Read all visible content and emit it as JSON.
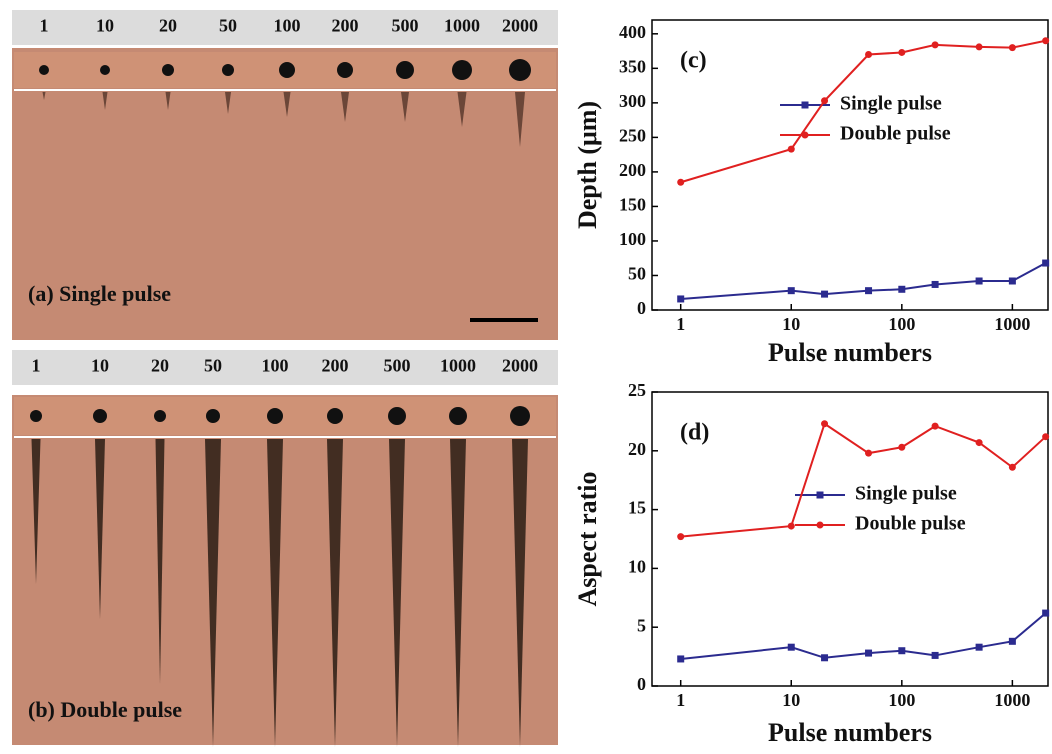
{
  "images": [
    {
      "label": "(a) Single pulse",
      "pulse_numbers": [
        "1",
        "10",
        "20",
        "50",
        "100",
        "200",
        "500",
        "1000",
        "2000"
      ]
    },
    {
      "label": "(b) Double pulse",
      "pulse_numbers": [
        "1",
        "10",
        "20",
        "50",
        "100",
        "200",
        "500",
        "1000",
        "2000"
      ]
    }
  ],
  "chart_data": [
    {
      "type": "line",
      "panel": "(c)",
      "xlabel": "Pulse numbers",
      "ylabel": "Depth (μm)",
      "xscale": "log",
      "x": [
        1,
        10,
        20,
        50,
        100,
        200,
        500,
        1000,
        2000
      ],
      "series": [
        {
          "name": "Single pulse",
          "color": "#2b2b8f",
          "marker": "square",
          "values": [
            16,
            28,
            23,
            28,
            30,
            37,
            42,
            42,
            68
          ]
        },
        {
          "name": "Double pulse",
          "color": "#e02020",
          "marker": "circle",
          "values": [
            185,
            233,
            303,
            370,
            373,
            384,
            381,
            380,
            390
          ]
        }
      ],
      "xlim": [
        0.55,
        2100
      ],
      "xticks": [
        1,
        10,
        100,
        1000
      ],
      "ylim": [
        0,
        420
      ],
      "yticks": [
        0,
        50,
        100,
        150,
        200,
        250,
        300,
        350,
        400
      ]
    },
    {
      "type": "line",
      "panel": "(d)",
      "xlabel": "Pulse numbers",
      "ylabel": "Aspect ratio",
      "xscale": "log",
      "x": [
        1,
        10,
        20,
        50,
        100,
        200,
        500,
        1000,
        2000
      ],
      "series": [
        {
          "name": "Single pulse",
          "color": "#2b2b8f",
          "marker": "square",
          "values": [
            2.3,
            3.3,
            2.4,
            2.8,
            3.0,
            2.6,
            3.3,
            3.8,
            6.2
          ]
        },
        {
          "name": "Double pulse",
          "color": "#e02020",
          "marker": "circle",
          "values": [
            12.7,
            13.6,
            22.3,
            19.8,
            20.3,
            22.1,
            20.7,
            18.6,
            21.2
          ]
        }
      ],
      "xlim": [
        0.55,
        2100
      ],
      "xticks": [
        1,
        10,
        100,
        1000
      ],
      "ylim": [
        0,
        25
      ],
      "yticks": [
        0,
        5,
        10,
        15,
        20,
        25
      ]
    }
  ]
}
